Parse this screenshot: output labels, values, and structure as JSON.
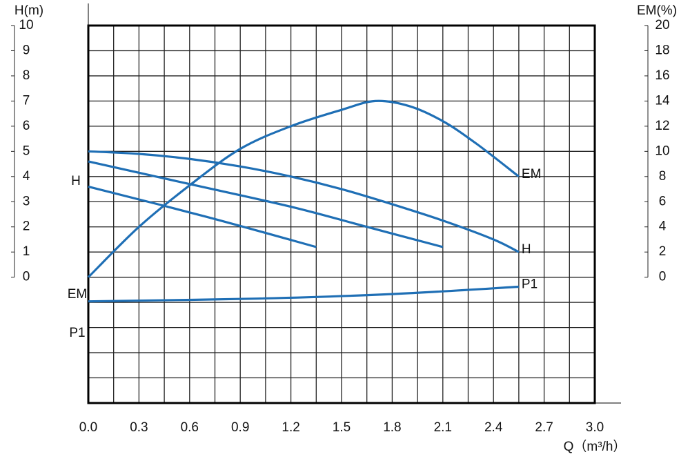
{
  "chart_data": {
    "type": "line",
    "y_label": "H(m)",
    "y2_label": "EM(%)",
    "x_label": "Q（m³/h）",
    "left_labels": [
      "H",
      "EM",
      "P1"
    ],
    "xlim": [
      0,
      3.0
    ],
    "xticks": [
      {
        "value": 0,
        "label": "0.0"
      },
      {
        "value": 0.3,
        "label": "0.3"
      },
      {
        "value": 0.6,
        "label": "0.6"
      },
      {
        "value": 0.9,
        "label": "0.9"
      },
      {
        "value": 1.2,
        "label": "1.2"
      },
      {
        "value": 1.5,
        "label": "1.5"
      },
      {
        "value": 1.8,
        "label": "1.8"
      },
      {
        "value": 2.1,
        "label": "2.1"
      },
      {
        "value": 2.4,
        "label": "2.4"
      },
      {
        "value": 2.7,
        "label": "2.7"
      },
      {
        "value": 3.0,
        "label": "3.0"
      }
    ],
    "ylim": [
      -5,
      10
    ],
    "yticks": [
      0,
      1,
      2,
      3,
      4,
      5,
      6,
      7,
      8,
      9,
      10
    ],
    "y2lim": [
      -10,
      20
    ],
    "y2ticks": [
      0,
      2,
      4,
      6,
      8,
      10,
      12,
      14,
      16,
      18,
      20
    ],
    "grid": true,
    "series": [
      {
        "name": "EM",
        "axis": "y2",
        "color": "#1f6fb5",
        "x": [
          0,
          0.3,
          0.6,
          0.9,
          1.2,
          1.5,
          1.7,
          1.9,
          2.1,
          2.3,
          2.55
        ],
        "values": [
          0,
          4,
          7.3,
          10.2,
          12,
          13.3,
          14,
          13.6,
          12.4,
          10.6,
          8
        ]
      },
      {
        "name": "H",
        "color": "#1f6fb5",
        "x": [
          0,
          0.3,
          0.6,
          0.9,
          1.2,
          1.5,
          1.8,
          2.1,
          2.4,
          2.55
        ],
        "values": [
          5.0,
          4.9,
          4.7,
          4.4,
          4.0,
          3.5,
          2.9,
          2.25,
          1.5,
          1.0
        ]
      },
      {
        "color": "#1f6fb5",
        "x": [
          0,
          0.6,
          1.2,
          1.65,
          2.1
        ],
        "values": [
          4.6,
          3.7,
          2.8,
          2.0,
          1.2
        ]
      },
      {
        "color": "#1f6fb5",
        "x": [
          0,
          0.7,
          1.35
        ],
        "values": [
          3.6,
          2.4,
          1.2
        ]
      },
      {
        "name": "P1",
        "color": "#1f6fb5",
        "x": [
          0,
          1.0,
          1.8,
          2.55
        ],
        "values": [
          -0.96,
          -0.85,
          -0.67,
          -0.38
        ]
      }
    ]
  }
}
